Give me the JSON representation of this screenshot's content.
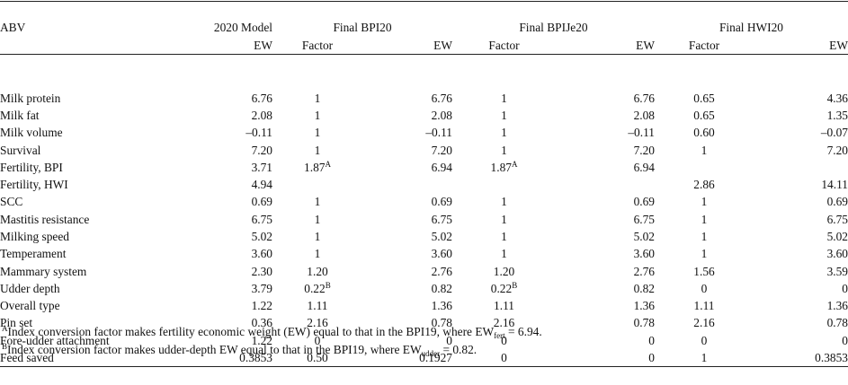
{
  "header": {
    "col_abv": "ABV",
    "group_2020": "2020 Model",
    "group_bpi": "Final BPI20",
    "group_bpije": "Final BPIJe20",
    "group_hwi": "Final HWI20",
    "sub_ew": "EW",
    "sub_factor": "Factor"
  },
  "rows": [
    {
      "label": "Milk protein",
      "m2020": "6.76",
      "bpi_f": "1",
      "bpi_ew": "6.76",
      "je_f": "1",
      "je_ew": "6.76",
      "hwi_f": "0.65",
      "hwi_ew": "4.36"
    },
    {
      "label": "Milk fat",
      "m2020": "2.08",
      "bpi_f": "1",
      "bpi_ew": "2.08",
      "je_f": "1",
      "je_ew": "2.08",
      "hwi_f": "0.65",
      "hwi_ew": "1.35"
    },
    {
      "label": "Milk volume",
      "m2020": "–0.11",
      "bpi_f": "1",
      "bpi_ew": "–0.11",
      "je_f": "1",
      "je_ew": "–0.11",
      "hwi_f": "0.60",
      "hwi_ew": "–0.07"
    },
    {
      "label": "Survival",
      "m2020": "7.20",
      "bpi_f": "1",
      "bpi_ew": "7.20",
      "je_f": "1",
      "je_ew": "7.20",
      "hwi_f": "1",
      "hwi_ew": "7.20"
    },
    {
      "label": "Fertility, BPI",
      "m2020": "3.71",
      "bpi_f": "1.87",
      "bpi_f_sup": "A",
      "bpi_ew": "6.94",
      "je_f": "1.87",
      "je_f_sup": "A",
      "je_ew": "6.94",
      "hwi_f": "",
      "hwi_ew": ""
    },
    {
      "label": "Fertility, HWI",
      "m2020": "4.94",
      "bpi_f": "",
      "bpi_ew": "",
      "je_f": "",
      "je_ew": "",
      "hwi_f": "2.86",
      "hwi_ew": "14.11"
    },
    {
      "label": "SCC",
      "m2020": "0.69",
      "bpi_f": "1",
      "bpi_ew": "0.69",
      "je_f": "1",
      "je_ew": "0.69",
      "hwi_f": "1",
      "hwi_ew": "0.69"
    },
    {
      "label": "Mastitis resistance",
      "m2020": "6.75",
      "bpi_f": "1",
      "bpi_ew": "6.75",
      "je_f": "1",
      "je_ew": "6.75",
      "hwi_f": "1",
      "hwi_ew": "6.75"
    },
    {
      "label": "Milking speed",
      "m2020": "5.02",
      "bpi_f": "1",
      "bpi_ew": "5.02",
      "je_f": "1",
      "je_ew": "5.02",
      "hwi_f": "1",
      "hwi_ew": "5.02"
    },
    {
      "label": "Temperament",
      "m2020": "3.60",
      "bpi_f": "1",
      "bpi_ew": "3.60",
      "je_f": "1",
      "je_ew": "3.60",
      "hwi_f": "1",
      "hwi_ew": "3.60"
    },
    {
      "label": "Mammary system",
      "m2020": "2.30",
      "bpi_f": "1.20",
      "bpi_ew": "2.76",
      "je_f": "1.20",
      "je_ew": "2.76",
      "hwi_f": "1.56",
      "hwi_ew": "3.59"
    },
    {
      "label": "Udder depth",
      "m2020": "3.79",
      "bpi_f": "0.22",
      "bpi_f_sup": "B",
      "bpi_ew": "0.82",
      "je_f": "0.22",
      "je_f_sup": "B",
      "je_ew": "0.82",
      "hwi_f": "0",
      "hwi_ew": "0"
    },
    {
      "label": "Overall type",
      "m2020": "1.22",
      "bpi_f": "1.11",
      "bpi_ew": "1.36",
      "je_f": "1.11",
      "je_ew": "1.36",
      "hwi_f": "1.11",
      "hwi_ew": "1.36"
    },
    {
      "label": "Pin set",
      "m2020": "0.36",
      "bpi_f": "2.16",
      "bpi_ew": "0.78",
      "je_f": "2.16",
      "je_ew": "0.78",
      "hwi_f": "2.16",
      "hwi_ew": "0.78"
    },
    {
      "label": "Fore-udder attachment",
      "m2020": "1.22",
      "bpi_f": "0",
      "bpi_ew": "0",
      "je_f": "0",
      "je_ew": "0",
      "hwi_f": "0",
      "hwi_ew": "0"
    },
    {
      "label": "Feed saved",
      "m2020": "0.3853",
      "bpi_f": "0.50",
      "bpi_ew": "0.1927",
      "je_f": "0",
      "je_ew": "0",
      "hwi_f": "1",
      "hwi_ew": "0.3853"
    }
  ],
  "footnotes": {
    "a_mark": "A",
    "a_text": "Index conversion factor makes fertility economic weight (EW) equal to that in the BPI19, where EW",
    "a_sub": "fert",
    "a_tail": " = 6.94.",
    "b_mark": "B",
    "b_text": "Index conversion factor makes udder-depth EW equal to that in the BPI19, where EW",
    "b_sub": "udder",
    "b_tail": " = 0.82."
  }
}
